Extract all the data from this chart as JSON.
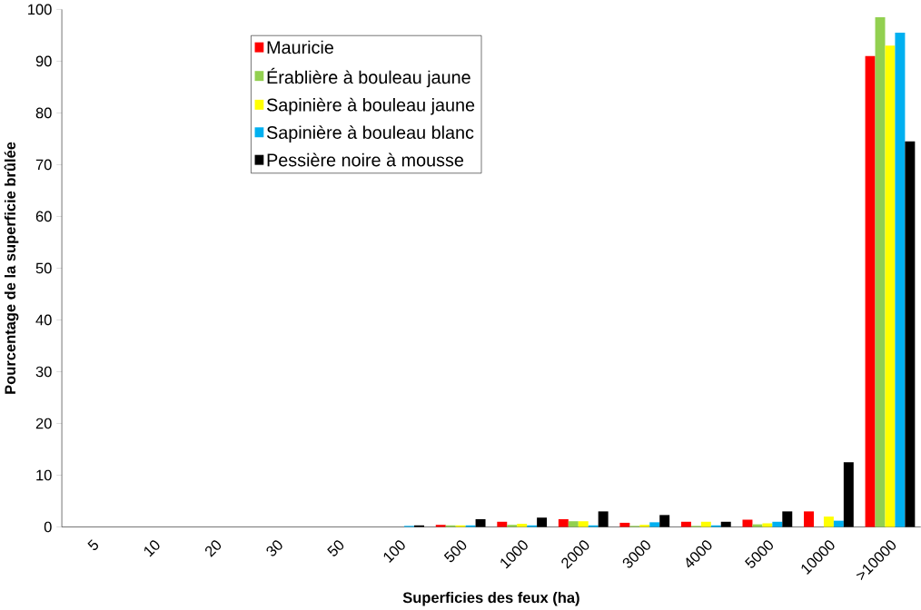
{
  "chart_data": {
    "type": "bar",
    "xlabel": "Superficies des feux (ha)",
    "ylabel": "Pourcentage de la superficie brûlée",
    "categories": [
      "5",
      "10",
      "20",
      "30",
      "50",
      "100",
      "500",
      "1000",
      "2000",
      "3000",
      "4000",
      "5000",
      "10000",
      ">10000"
    ],
    "series": [
      {
        "name": "Mauricie",
        "color": "#ff0000",
        "values": [
          0,
          0,
          0,
          0,
          0,
          0,
          0.4,
          1,
          1.5,
          0.8,
          1,
          1.4,
          3,
          91
        ]
      },
      {
        "name": "Érablière à bouleau jaune",
        "color": "#92d050",
        "values": [
          0,
          0,
          0,
          0,
          0,
          0,
          0.3,
          0.4,
          1.1,
          0.2,
          0.2,
          0.5,
          0,
          98.5
        ]
      },
      {
        "name": "Sapinière à bouleau jaune",
        "color": "#ffff00",
        "values": [
          0,
          0,
          0,
          0,
          0,
          0,
          0.3,
          0.6,
          1.1,
          0.4,
          1,
          0.7,
          2,
          93
        ]
      },
      {
        "name": "Sapinière à bouleau blanc",
        "color": "#00b0f0",
        "values": [
          0,
          0,
          0,
          0,
          0,
          0.2,
          0.3,
          0.3,
          0.3,
          0.9,
          0.3,
          1,
          1.2,
          95.5
        ]
      },
      {
        "name": "Pessière noire à mousse",
        "color": "#000000",
        "values": [
          0,
          0,
          0,
          0,
          0,
          0.3,
          1.5,
          1.8,
          3,
          2.3,
          1,
          3,
          12.5,
          74.5
        ]
      }
    ],
    "ylim": [
      0,
      100
    ],
    "yticks": [
      0,
      10,
      20,
      30,
      40,
      50,
      60,
      70,
      80,
      90,
      100
    ],
    "grid": false,
    "legend": "top left"
  }
}
